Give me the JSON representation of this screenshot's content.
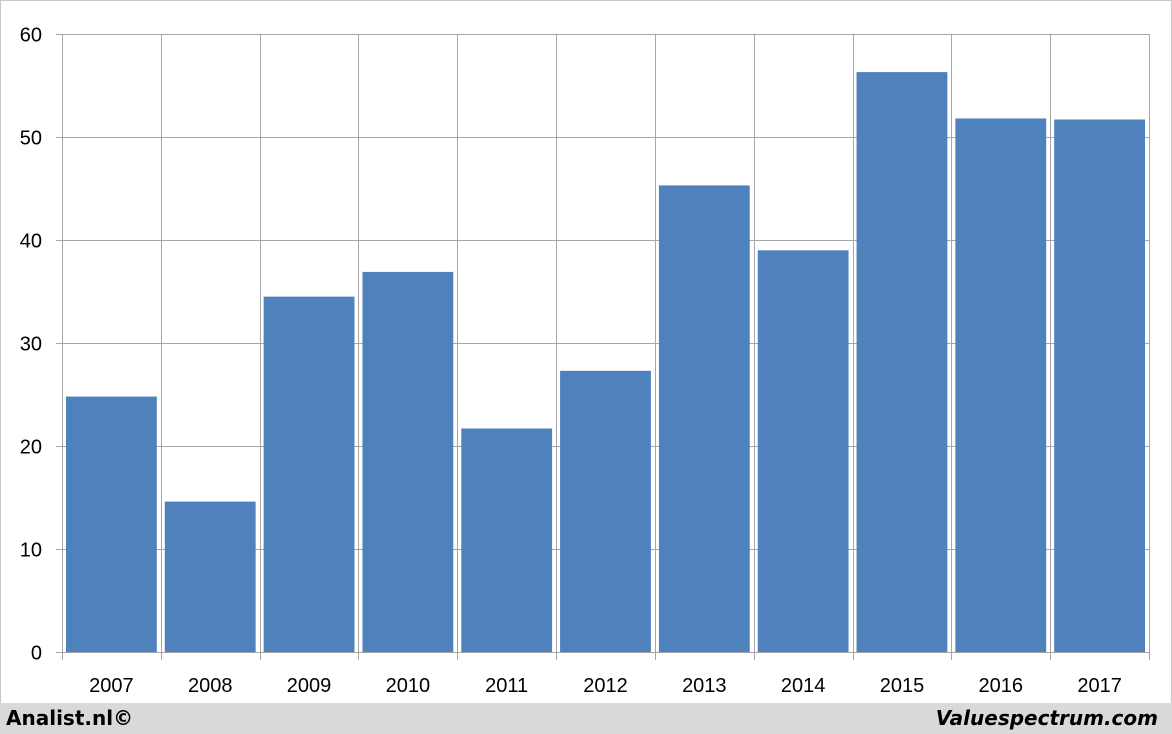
{
  "chart_data": {
    "type": "bar",
    "categories": [
      "2007",
      "2008",
      "2009",
      "2010",
      "2011",
      "2012",
      "2013",
      "2014",
      "2015",
      "2016",
      "2017"
    ],
    "values": [
      24.8,
      14.6,
      34.5,
      36.9,
      21.7,
      27.3,
      45.3,
      39.0,
      56.3,
      51.8,
      51.7
    ],
    "ylim": [
      0,
      60
    ],
    "yticks": [
      0,
      10,
      20,
      30,
      40,
      50,
      60
    ],
    "grid": true,
    "bar_color": "#4f81bd",
    "grid_color": "#a6a6a6"
  },
  "footer": {
    "left": "Analist.nl©",
    "right": "Valuespectrum.com"
  }
}
